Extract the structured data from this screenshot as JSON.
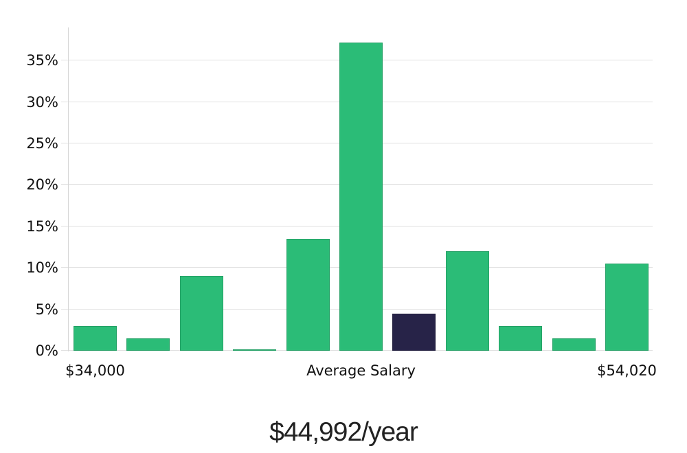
{
  "chart_data": {
    "type": "bar",
    "title": "$44,992/year",
    "xlabel": "",
    "ylabel": "",
    "unit": "%",
    "values": [
      3,
      1.5,
      9,
      0.15,
      13.5,
      37.2,
      4.5,
      12,
      3,
      1.5,
      10.5
    ],
    "highlight_index": 6,
    "colors": {
      "bar": "#2bbc77",
      "highlight_bar": "#272348",
      "gridline": "#e0e0e0",
      "axis_line": "#d6d6d6",
      "label_text": "#111111",
      "title_text": "#222222"
    },
    "y_ticks": [
      {
        "value": 0,
        "label": "0%"
      },
      {
        "value": 5,
        "label": "5%"
      },
      {
        "value": 10,
        "label": "10%"
      },
      {
        "value": 15,
        "label": "15%"
      },
      {
        "value": 20,
        "label": "20%"
      },
      {
        "value": 25,
        "label": "25%"
      },
      {
        "value": 30,
        "label": "30%"
      },
      {
        "value": 35,
        "label": "35%"
      }
    ],
    "x_ticks": [
      {
        "bar_index": 0,
        "label": "$34,000"
      },
      {
        "bar_index": 5,
        "label": "Average Salary"
      },
      {
        "bar_index": 10,
        "label": "$54,020"
      }
    ],
    "ylim": [
      0,
      39
    ],
    "grid": true,
    "legend": false
  }
}
